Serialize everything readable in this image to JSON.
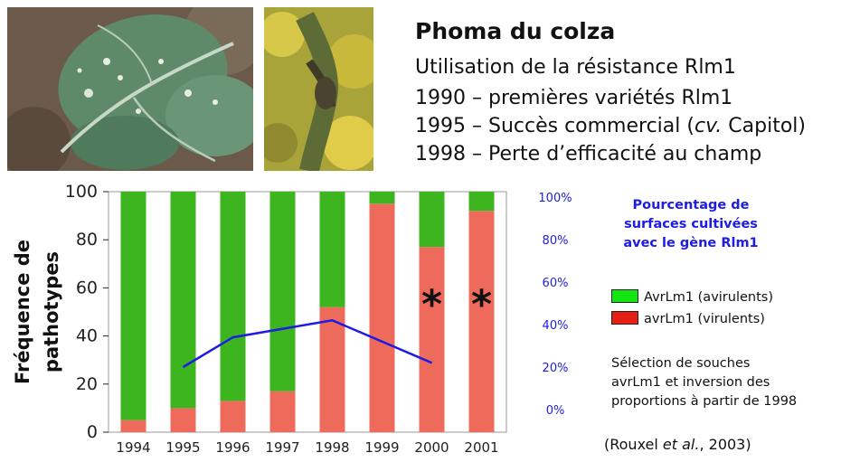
{
  "title": "Phoma du colza",
  "subtitle": "Utilisation de la résistance Rlm1",
  "timeline": [
    {
      "parts": [
        "1990 – premières variétés Rlm1"
      ]
    },
    {
      "parts": [
        "1995 – Succès commercial (",
        "cv.",
        " Capitol)"
      ]
    },
    {
      "parts": [
        "1998 – Perte d’efficacité au champ"
      ]
    }
  ],
  "photos": [
    "leaf-photo",
    "stem-photo"
  ],
  "chart_data": {
    "type": "bar",
    "stacked": true,
    "categories": [
      "1994",
      "1995",
      "1996",
      "1997",
      "1998",
      "1999",
      "2000",
      "2001"
    ],
    "series": [
      {
        "name": "AvrLm1 (avirulents)",
        "color": "#3cb51e",
        "values": [
          95,
          90,
          87,
          83,
          48,
          5,
          23,
          8
        ]
      },
      {
        "name": "avrLm1 (virulents)",
        "color": "#ee6b5c",
        "values": [
          5,
          10,
          13,
          17,
          52,
          95,
          77,
          92
        ]
      }
    ],
    "ylabel": "Fréquence de pathotypes",
    "ylim": [
      0,
      100
    ],
    "yticks": [
      "0",
      "20",
      "40",
      "60",
      "80",
      "100"
    ],
    "asterisk_categories": [
      "2000",
      "2001"
    ],
    "secondary_axis": {
      "ticks": [
        "0%",
        "20%",
        "40%",
        "60%",
        "80%",
        "100%"
      ],
      "color": "#1c1ce6",
      "range": [
        0,
        100
      ],
      "series": {
        "name": "Pourcentage de surfaces cultivées avec le gène Rlm1",
        "x": [
          "1995",
          "1996",
          "1998",
          "2000"
        ],
        "values": [
          20,
          34,
          42,
          22
        ]
      }
    }
  },
  "secondary_title_lines": [
    "Pourcentage de",
    "surfaces cultivées",
    "avec le gène Rlm1"
  ],
  "legend": [
    {
      "label": "AvrLm1 (avirulents)",
      "color": "#14e614"
    },
    {
      "label": "avrLm1 (virulents)",
      "color": "#e61e14"
    }
  ],
  "note_lines": [
    "Sélection de souches",
    "avrLm1 et inversion des",
    "proportions à partir de 1998"
  ],
  "citation_parts": [
    "(Rouxel ",
    "et al.",
    ", 2003)"
  ]
}
